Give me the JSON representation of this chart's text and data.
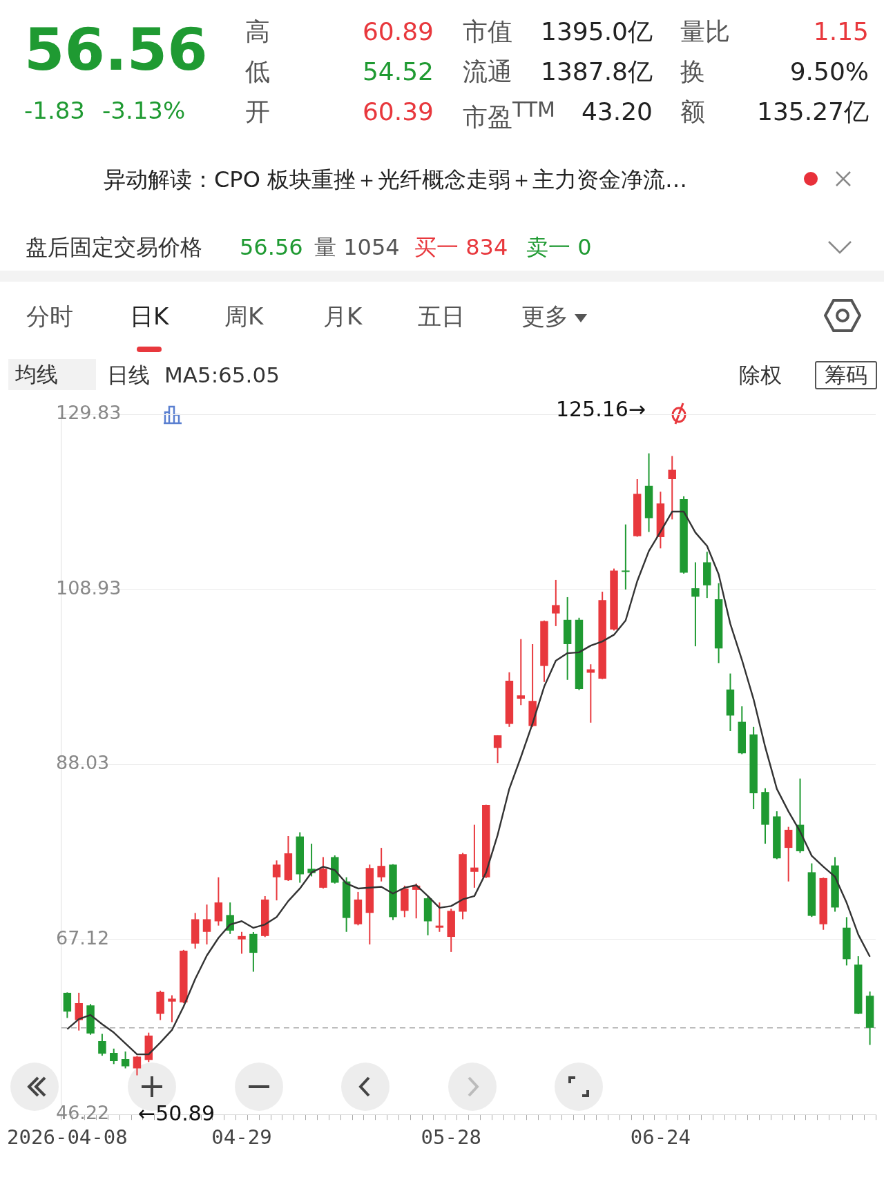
{
  "chart_data": {
    "type": "candlestick",
    "categories": [
      "2026-04-08",
      null,
      null,
      null,
      null,
      null,
      null,
      null,
      null,
      null,
      null,
      null,
      null,
      null,
      null,
      "04-29",
      null,
      null,
      null,
      null,
      null,
      null,
      null,
      null,
      null,
      null,
      null,
      null,
      null,
      null,
      null,
      null,
      null,
      "05-28",
      null,
      null,
      null,
      null,
      null,
      null,
      null,
      null,
      null,
      null,
      null,
      null,
      null,
      null,
      null,
      null,
      null,
      "06-24",
      null,
      null,
      null,
      null,
      null,
      null,
      null,
      null,
      null,
      null,
      null,
      null,
      null,
      null,
      null,
      null,
      null,
      null
    ],
    "ohlc": [
      [
        60.75,
        60.8,
        57.74,
        58.49
      ],
      [
        57.49,
        60.75,
        56.24,
        59.5
      ],
      [
        59.25,
        59.4,
        55.74,
        55.89
      ],
      [
        54.98,
        55.84,
        53.23,
        53.48
      ],
      [
        53.58,
        54.08,
        52.23,
        52.58
      ],
      [
        52.83,
        53.73,
        51.72,
        51.97
      ],
      [
        51.72,
        53.2,
        50.89,
        53.13
      ],
      [
        52.73,
        55.99,
        52.48,
        55.64
      ],
      [
        58.24,
        61.0,
        57.49,
        60.85
      ],
      [
        59.7,
        60.45,
        57.24,
        60.05
      ],
      [
        59.6,
        65.87,
        59.5,
        65.77
      ],
      [
        66.62,
        70.28,
        66.02,
        69.53
      ],
      [
        68.02,
        71.28,
        66.52,
        69.53
      ],
      [
        69.28,
        74.54,
        68.77,
        71.53
      ],
      [
        70.03,
        71.53,
        67.77,
        68.17
      ],
      [
        67.12,
        68.02,
        65.41,
        67.52
      ],
      [
        67.77,
        68.0,
        63.26,
        65.52
      ],
      [
        67.52,
        72.29,
        67.4,
        71.88
      ],
      [
        74.54,
        76.55,
        71.78,
        76.05
      ],
      [
        74.19,
        79.46,
        74.1,
        77.4
      ],
      [
        79.41,
        79.91,
        73.89,
        74.89
      ],
      [
        75.55,
        78.55,
        74.64,
        75.04
      ],
      [
        73.29,
        76.95,
        73.2,
        75.55
      ],
      [
        76.95,
        77.15,
        73.79,
        73.89
      ],
      [
        74.04,
        74.54,
        68.02,
        69.68
      ],
      [
        68.93,
        72.79,
        68.8,
        71.88
      ],
      [
        70.28,
        76.05,
        66.52,
        75.65
      ],
      [
        74.54,
        78.05,
        74.04,
        75.9
      ],
      [
        76.05,
        76.1,
        69.43,
        69.78
      ],
      [
        70.53,
        73.54,
        69.78,
        73.19
      ],
      [
        73.04,
        73.79,
        69.63,
        73.54
      ],
      [
        72.03,
        72.29,
        67.62,
        69.28
      ],
      [
        68.52,
        71.53,
        68.02,
        68.77
      ],
      [
        67.42,
        70.78,
        65.62,
        70.53
      ],
      [
        70.43,
        77.45,
        69.53,
        77.3
      ],
      [
        75.19,
        80.81,
        73.29,
        75.7
      ],
      [
        74.54,
        83.2,
        74.44,
        83.17
      ],
      [
        89.99,
        91.5,
        88.18,
        91.49
      ],
      [
        92.85,
        99.02,
        92.5,
        98.01
      ],
      [
        95.86,
        102.98,
        95.1,
        96.26
      ],
      [
        92.6,
        102.38,
        92.5,
        95.6
      ],
      [
        99.77,
        105.2,
        97.86,
        105.13
      ],
      [
        106.04,
        110.05,
        104.53,
        107.04
      ],
      [
        105.28,
        107.99,
        98.11,
        102.38
      ],
      [
        105.28,
        105.53,
        96.9,
        97.01
      ],
      [
        98.96,
        99.97,
        93.0,
        99.37
      ],
      [
        98.26,
        108.64,
        98.2,
        107.64
      ],
      [
        104.13,
        111.4,
        104.0,
        111.15
      ],
      [
        111.15,
        116.67,
        108.9,
        111.0
      ],
      [
        115.27,
        122.08,
        115.2,
        120.33
      ],
      [
        121.28,
        125.16,
        115.77,
        117.42
      ],
      [
        115.16,
        120.58,
        113.81,
        119.17
      ],
      [
        122.08,
        124.84,
        117.27,
        123.19
      ],
      [
        119.68,
        120.03,
        110.8,
        110.9
      ],
      [
        109.05,
        112.15,
        102.12,
        108.04
      ],
      [
        112.15,
        113.41,
        107.89,
        109.4
      ],
      [
        107.74,
        109.65,
        100.12,
        101.87
      ],
      [
        96.96,
        98.87,
        91.99,
        93.85
      ],
      [
        93.1,
        94.95,
        89.24,
        89.34
      ],
      [
        91.59,
        92.5,
        82.67,
        84.57
      ],
      [
        84.72,
        85.17,
        78.55,
        80.81
      ],
      [
        81.81,
        82.42,
        76.7,
        76.8
      ],
      [
        78.05,
        80.56,
        74.04,
        80.21
      ],
      [
        80.81,
        86.33,
        77.45,
        77.65
      ],
      [
        75.14,
        76.2,
        69.8,
        69.93
      ],
      [
        68.93,
        74.5,
        68.27,
        74.44
      ],
      [
        75.95,
        76.95,
        70.43,
        70.93
      ],
      [
        68.52,
        69.78,
        64.01,
        64.76
      ],
      [
        64.11,
        65.11,
        58.2,
        58.24
      ],
      [
        60.39,
        60.89,
        54.52,
        56.56
      ]
    ],
    "colors": [
      "#1f9a32",
      "#e8383d",
      "#1f9a32",
      "#1f9a32",
      "#1f9a32",
      "#1f9a32",
      "#e8383d",
      "#e8383d",
      "#e8383d",
      "#e8383d",
      "#e8383d",
      "#e8383d",
      "#e8383d",
      "#e8383d",
      "#1f9a32",
      "#e8383d",
      "#1f9a32",
      "#e8383d",
      "#e8383d",
      "#e8383d",
      "#1f9a32",
      "#1f9a32",
      "#e8383d",
      "#1f9a32",
      "#1f9a32",
      "#e8383d",
      "#e8383d",
      "#e8383d",
      "#1f9a32",
      "#e8383d",
      "#e8383d",
      "#1f9a32",
      "#e8383d",
      "#e8383d",
      "#e8383d",
      "#e8383d",
      "#e8383d",
      "#e8383d",
      "#e8383d",
      "#e8383d",
      "#e8383d",
      "#e8383d",
      "#e8383d",
      "#1f9a32",
      "#1f9a32",
      "#e8383d",
      "#e8383d",
      "#e8383d",
      "#1f9a32",
      "#e8383d",
      "#1f9a32",
      "#e8383d",
      "#e8383d",
      "#1f9a32",
      "#1f9a32",
      "#1f9a32",
      "#1f9a32",
      "#1f9a32",
      "#1f9a32",
      "#1f9a32",
      "#1f9a32",
      "#1f9a32",
      "#e8383d",
      "#1f9a32",
      "#1f9a32",
      "#e8383d",
      "#1f9a32",
      "#1f9a32",
      "#1f9a32",
      "#1f9a32"
    ],
    "series": [
      {
        "type": "line",
        "name": "MA5:65.05",
        "color": "#333333",
        "values": [
          56.4,
          57.6,
          58.1,
          57.0,
          56.0,
          54.7,
          53.4,
          53.4,
          54.8,
          56.3,
          59.1,
          62.4,
          65.2,
          67.3,
          68.9,
          69.3,
          68.5,
          68.9,
          69.8,
          71.7,
          73.2,
          75.1,
          75.8,
          75.4,
          73.8,
          73.2,
          73.3,
          73.4,
          72.6,
          73.3,
          73.6,
          72.3,
          70.9,
          71.1,
          71.9,
          72.3,
          75.1,
          79.6,
          85.1,
          88.9,
          92.9,
          97.3,
          100.4,
          101.3,
          101.4,
          102.2,
          102.7,
          103.5,
          105.2,
          109.9,
          113.5,
          115.8,
          118.2,
          118.2,
          115.7,
          114.1,
          110.7,
          104.8,
          100.5,
          95.8,
          90.1,
          85.1,
          82.4,
          80.0,
          77.1,
          75.8,
          74.6,
          71.5,
          67.7,
          65.05
        ]
      }
    ],
    "ylim": [
      46.22,
      129.83
    ],
    "yticks": [
      46.22,
      67.12,
      88.03,
      108.93,
      129.83
    ],
    "grid": "y",
    "ref_lines": [
      {
        "axis": "y",
        "value": 56.56,
        "color": "#aaaaaa",
        "line_style": "dashed"
      }
    ],
    "annotations": [
      "56.56",
      "-1.83",
      "-3.13%",
      "高",
      "60.89",
      "低",
      "54.52",
      "开",
      "60.39",
      "市值",
      "1395.0亿",
      "流通",
      "1387.8亿",
      "市盈$^{TTM}$",
      "43.20",
      "量比",
      "1.15",
      "换",
      "9.50%",
      "额",
      "135.27亿",
      "异动解读：CPO 板块重挫＋光纤概念走弱＋主力资金净流…",
      "盘后固定交易价格",
      "56.56",
      "量 1054",
      "买一 834",
      "卖一 0",
      "分时",
      "日K",
      "周K",
      "月K",
      "五日",
      "更多",
      "均线",
      "日线",
      "除权",
      "筹码",
      "125.16→",
      "←50.89"
    ]
  }
}
